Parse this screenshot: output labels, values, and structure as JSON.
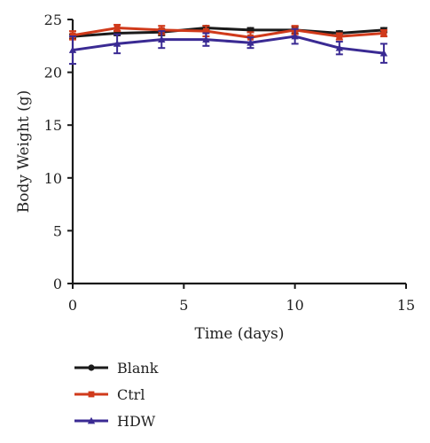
{
  "chart_data": {
    "type": "line",
    "xlabel": "Time (days)",
    "ylabel": "Body Weight (g)",
    "xlim": [
      0,
      15
    ],
    "ylim": [
      0,
      25
    ],
    "x_ticks": [
      "0",
      "5",
      "10",
      "15"
    ],
    "y_ticks": [
      "0",
      "5",
      "10",
      "15",
      "20",
      "25"
    ],
    "grid": false,
    "legend_position": "bottom-left",
    "x": [
      0,
      2,
      4,
      6,
      8,
      10,
      12,
      14
    ],
    "series": [
      {
        "name": "Blank",
        "color": "#1a1a1a",
        "marker": "circle",
        "values": [
          23.4,
          23.7,
          23.8,
          24.2,
          24.0,
          24.0,
          23.7,
          24.0
        ],
        "errors": [
          0.2,
          0.2,
          0.3,
          0.2,
          0.2,
          0.3,
          0.2,
          0.2
        ]
      },
      {
        "name": "Ctrl",
        "color": "#d03a1b",
        "marker": "square",
        "values": [
          23.5,
          24.2,
          24.0,
          23.9,
          23.3,
          24.0,
          23.4,
          23.7
        ],
        "errors": [
          0.4,
          0.3,
          0.4,
          0.5,
          0.5,
          0.4,
          0.3,
          0.3
        ]
      },
      {
        "name": "HDW",
        "color": "#3a2a93",
        "marker": "triangle",
        "values": [
          22.1,
          22.7,
          23.1,
          23.1,
          22.8,
          23.4,
          22.3,
          21.8
        ],
        "errors": [
          1.3,
          0.9,
          0.8,
          0.6,
          0.5,
          0.7,
          0.6,
          0.9
        ]
      }
    ]
  }
}
